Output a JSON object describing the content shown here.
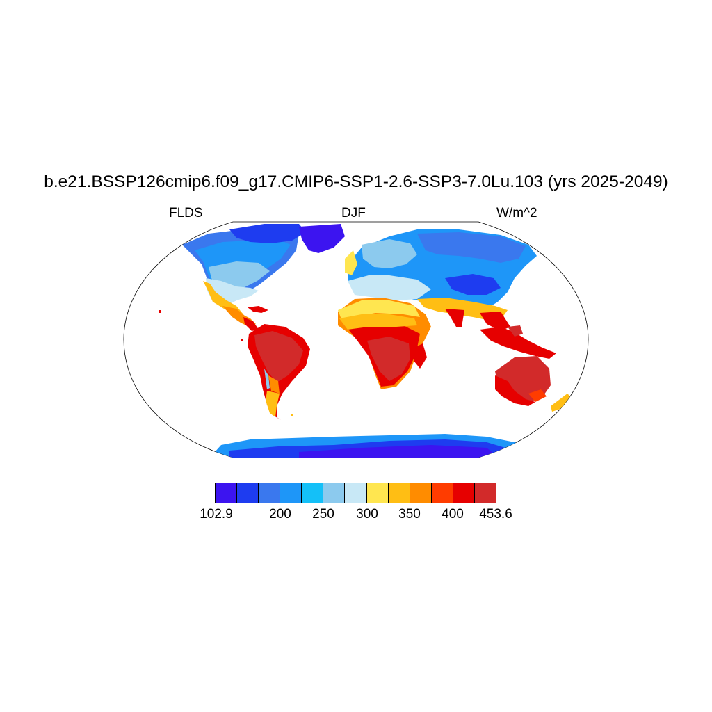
{
  "title": "b.e21.BSSP126cmip6.f09_g17.CMIP6-SSP1-2.6-SSP3-7.0Lu.103 (yrs 2025-2049)",
  "left_label": "FLDS",
  "center_label": "DJF",
  "right_label": "W/m^2",
  "colorbar": {
    "colors": [
      "#3c14f0",
      "#1e3cf0",
      "#3a78ee",
      "#1e96f8",
      "#14c0f8",
      "#8ccaee",
      "#c8e8f6",
      "#ffe650",
      "#ffbe14",
      "#ff8c00",
      "#ff3c00",
      "#e60000",
      "#d22a2a"
    ],
    "tick_labels": [
      "102.9",
      "200",
      "250",
      "300",
      "350",
      "400",
      "453.6"
    ]
  },
  "map": {
    "projection": "Robinson",
    "field": "FLDS",
    "season": "DJF",
    "units": "W/m^2",
    "range": [
      102.9,
      453.6
    ]
  }
}
